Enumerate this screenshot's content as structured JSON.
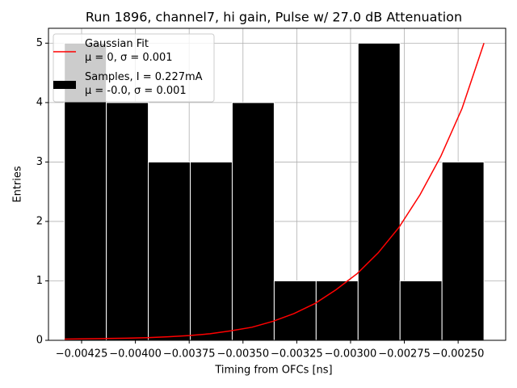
{
  "chart_data": {
    "type": "histogram",
    "title": "Run 1896, channel7, hi gain, Pulse w/ 27.0 dB Attenuation",
    "x_label": "Timing from OFCs [ns]",
    "y_label": "Entries",
    "name": "Samples, I = 0.227mA\nμ = -0.0, σ = 0.001",
    "color": "#000000",
    "bins": [
      -0.00433,
      -0.004135,
      -0.00394,
      -0.003745,
      -0.00355,
      -0.003355,
      -0.00316,
      -0.002965,
      -0.00277,
      -0.002575,
      -0.00238
    ],
    "values": [
      5,
      4,
      3,
      3,
      4,
      1,
      1,
      5,
      1,
      3
    ],
    "overlay": {
      "type": "line",
      "name": "Gaussian Fit\nμ = 0, σ = 0.001",
      "color": "#ff0000",
      "x": [
        -0.004329,
        -0.004137,
        -0.00404,
        -0.003946,
        -0.003848,
        -0.00375,
        -0.003653,
        -0.003556,
        -0.003458,
        -0.00336,
        -0.003263,
        -0.003165,
        -0.003068,
        -0.00297,
        -0.002872,
        -0.002775,
        -0.002677,
        -0.00258,
        -0.002482,
        -0.00238
      ],
      "values": [
        0.02,
        0.03,
        0.035,
        0.045,
        0.06,
        0.08,
        0.11,
        0.16,
        0.22,
        0.32,
        0.45,
        0.62,
        0.85,
        1.12,
        1.47,
        1.9,
        2.45,
        3.1,
        3.9,
        5.0
      ]
    },
    "xlim": [
      -0.004404,
      -0.002279
    ],
    "ylim": [
      0,
      5.25
    ],
    "xticks": [
      {
        "value": -0.00425,
        "label": "−0.00425"
      },
      {
        "value": -0.004,
        "label": "−0.00400"
      },
      {
        "value": -0.00375,
        "label": "−0.00375"
      },
      {
        "value": -0.0035,
        "label": "−0.00350"
      },
      {
        "value": -0.00325,
        "label": "−0.00325"
      },
      {
        "value": -0.003,
        "label": "−0.00300"
      },
      {
        "value": -0.00275,
        "label": "−0.00275"
      },
      {
        "value": -0.0025,
        "label": "−0.00250"
      }
    ],
    "yticks": [
      0,
      1,
      2,
      3,
      4,
      5
    ],
    "grid": true,
    "legend": "upper left"
  }
}
